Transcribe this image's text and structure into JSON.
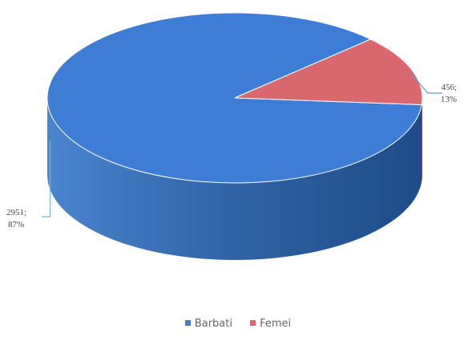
{
  "chart_data": {
    "type": "pie",
    "three_d": true,
    "categories": [
      "Barbati",
      "Femei"
    ],
    "values": [
      2951,
      456
    ],
    "percentages": [
      "87%",
      "13%"
    ],
    "data_labels": [
      {
        "value": "2951;",
        "percent": "87%"
      },
      {
        "value": "456;",
        "percent": "13%"
      }
    ],
    "colors": [
      "#3d7dd6",
      "#d9686e"
    ],
    "side_colors": [
      "#2a5d9c",
      "#a84a50"
    ],
    "legend": {
      "placement": "bottom",
      "items": [
        "Barbati",
        "Femei"
      ]
    }
  }
}
